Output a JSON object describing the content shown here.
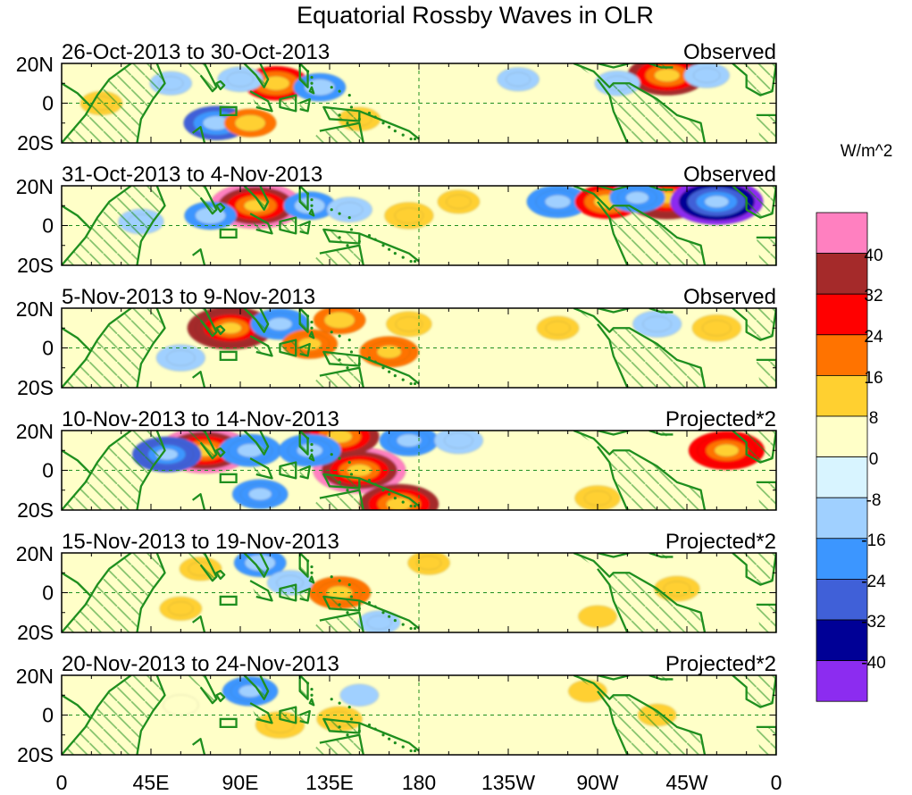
{
  "chart_data": {
    "type": "heatmap",
    "title": "Equatorial Rossby Waves in OLR",
    "units": "W/m^2",
    "x_ticks": [
      "0",
      "45E",
      "90E",
      "135E",
      "180",
      "135W",
      "90W",
      "45W",
      "0"
    ],
    "y_ticks": [
      "20N",
      "0",
      "20S"
    ],
    "colorbar": {
      "labels": [
        "40",
        "32",
        "24",
        "16",
        "8",
        "0",
        "-8",
        "-16",
        "-24",
        "-32",
        "-40"
      ],
      "colors": [
        "#ff80c0",
        "#a52a2a",
        "#ff0000",
        "#ff7300",
        "#ffd030",
        "#ffffc8",
        "#d8f4ff",
        "#a0d0ff",
        "#3c96ff",
        "#4060d8",
        "#000096",
        "#8c2cf0"
      ]
    },
    "panels": [
      {
        "date_range": "26-Oct-2013 to 30-Oct-2013",
        "kind": "Observed",
        "anomalies": [
          {
            "lon": 108,
            "lat": 10,
            "value": 24
          },
          {
            "lon": 78,
            "lat": -10,
            "value": -24
          },
          {
            "lon": 95,
            "lat": -10,
            "value": 16
          },
          {
            "lon": 90,
            "lat": 12,
            "value": -12
          },
          {
            "lon": 130,
            "lat": 8,
            "value": -16
          },
          {
            "lon": 150,
            "lat": -8,
            "value": 10
          },
          {
            "lon": 305,
            "lat": 14,
            "value": 32
          },
          {
            "lon": 280,
            "lat": 10,
            "value": -12
          },
          {
            "lon": 325,
            "lat": 14,
            "value": -12
          },
          {
            "lon": 230,
            "lat": 12,
            "value": -10
          },
          {
            "lon": 20,
            "lat": 0,
            "value": 10
          },
          {
            "lon": 55,
            "lat": 10,
            "value": -10
          }
        ]
      },
      {
        "date_range": "31-Oct-2013 to 4-Nov-2013",
        "kind": "Observed",
        "anomalies": [
          {
            "lon": 98,
            "lat": 10,
            "value": 40
          },
          {
            "lon": 75,
            "lat": 5,
            "value": -16
          },
          {
            "lon": 125,
            "lat": 10,
            "value": -16
          },
          {
            "lon": 145,
            "lat": 8,
            "value": -12
          },
          {
            "lon": 175,
            "lat": 5,
            "value": 14
          },
          {
            "lon": 200,
            "lat": 12,
            "value": 10
          },
          {
            "lon": 250,
            "lat": 12,
            "value": -22
          },
          {
            "lon": 275,
            "lat": 12,
            "value": 24
          },
          {
            "lon": 305,
            "lat": 14,
            "value": 36
          },
          {
            "lon": 330,
            "lat": 12,
            "value": -40
          },
          {
            "lon": 290,
            "lat": 14,
            "value": -18
          },
          {
            "lon": 40,
            "lat": 2,
            "value": -12
          }
        ]
      },
      {
        "date_range": "5-Nov-2013 to 9-Nov-2013",
        "kind": "Observed",
        "anomalies": [
          {
            "lon": 85,
            "lat": 10,
            "value": 36
          },
          {
            "lon": 110,
            "lat": 12,
            "value": -20
          },
          {
            "lon": 125,
            "lat": 2,
            "value": 18
          },
          {
            "lon": 140,
            "lat": 14,
            "value": 16
          },
          {
            "lon": 165,
            "lat": -2,
            "value": 20
          },
          {
            "lon": 175,
            "lat": 12,
            "value": 12
          },
          {
            "lon": 250,
            "lat": 10,
            "value": 10
          },
          {
            "lon": 300,
            "lat": 12,
            "value": -14
          },
          {
            "lon": 330,
            "lat": 10,
            "value": 14
          },
          {
            "lon": 60,
            "lat": -5,
            "value": -14
          }
        ]
      },
      {
        "date_range": "10-Nov-2013 to 14-Nov-2013",
        "kind": "Projected*2",
        "anomalies": [
          {
            "lon": 72,
            "lat": 10,
            "value": 40
          },
          {
            "lon": 150,
            "lat": 0,
            "value": 40
          },
          {
            "lon": 140,
            "lat": 17,
            "value": 32
          },
          {
            "lon": 170,
            "lat": -17,
            "value": 32
          },
          {
            "lon": 53,
            "lat": 8,
            "value": -26
          },
          {
            "lon": 95,
            "lat": 10,
            "value": -22
          },
          {
            "lon": 125,
            "lat": 10,
            "value": -22
          },
          {
            "lon": 175,
            "lat": 15,
            "value": -20
          },
          {
            "lon": 200,
            "lat": 15,
            "value": -14
          },
          {
            "lon": 100,
            "lat": -12,
            "value": -18
          },
          {
            "lon": 335,
            "lat": 10,
            "value": 30
          },
          {
            "lon": 270,
            "lat": -14,
            "value": 12
          }
        ]
      },
      {
        "date_range": "15-Nov-2013 to 19-Nov-2013",
        "kind": "Projected*2",
        "anomalies": [
          {
            "lon": 140,
            "lat": 0,
            "value": 22
          },
          {
            "lon": 100,
            "lat": 15,
            "value": -16
          },
          {
            "lon": 115,
            "lat": 5,
            "value": -12
          },
          {
            "lon": 70,
            "lat": 12,
            "value": 10
          },
          {
            "lon": 60,
            "lat": -8,
            "value": 10
          },
          {
            "lon": 185,
            "lat": 15,
            "value": 10
          },
          {
            "lon": 310,
            "lat": 2,
            "value": 12
          },
          {
            "lon": 270,
            "lat": -12,
            "value": 8
          },
          {
            "lon": 160,
            "lat": -15,
            "value": -10
          }
        ]
      },
      {
        "date_range": "20-Nov-2013 to 24-Nov-2013",
        "kind": "Projected*2",
        "anomalies": [
          {
            "lon": 95,
            "lat": 12,
            "value": -18
          },
          {
            "lon": 110,
            "lat": -5,
            "value": 14
          },
          {
            "lon": 140,
            "lat": -2,
            "value": 12
          },
          {
            "lon": 150,
            "lat": 10,
            "value": -8
          },
          {
            "lon": 60,
            "lat": 5,
            "value": 6
          },
          {
            "lon": 265,
            "lat": 12,
            "value": 8
          },
          {
            "lon": 300,
            "lat": 0,
            "value": 8
          }
        ]
      }
    ]
  }
}
